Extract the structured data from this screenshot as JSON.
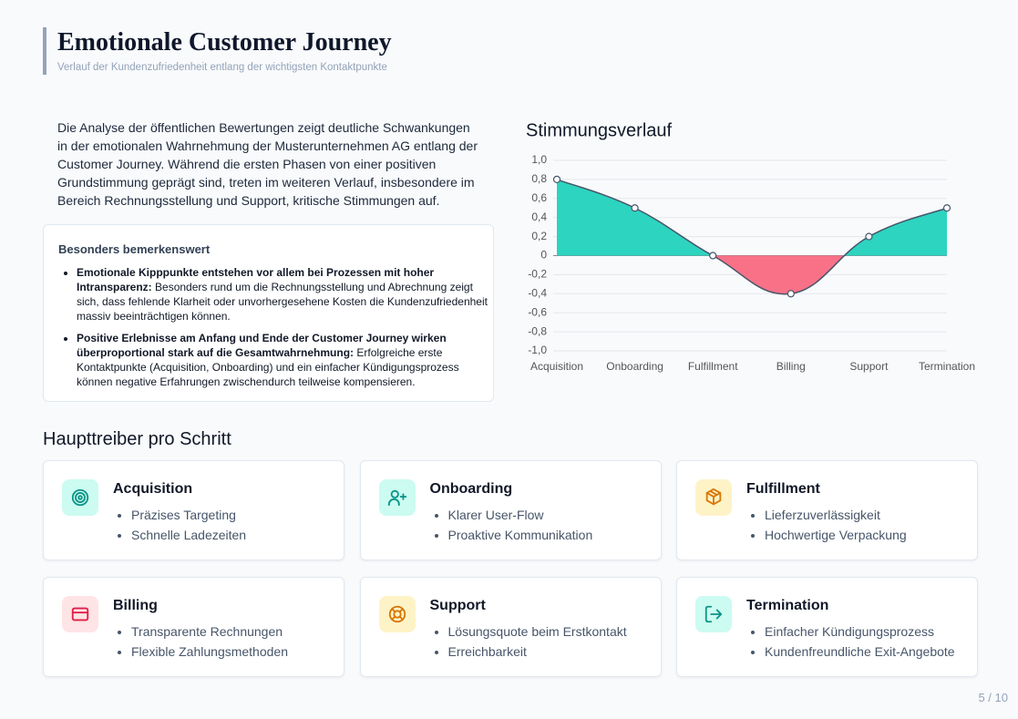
{
  "header": {
    "title": "Emotionale Customer Journey",
    "subtitle": "Verlauf der Kundenzufriedenheit entlang der wichtigsten Kontaktpunkte"
  },
  "intro": "Die Analyse der öffentlichen Bewertungen zeigt deutliche Schwankungen in der emotionalen Wahrnehmung der Musterunternehmen AG entlang der Customer Journey. Während die ersten Phasen von einer positiven Grundstimmung geprägt sind, treten im weiteren Verlauf, insbesondere im Bereich Rechnungsstellung und Support, kritische Stimmungen auf.",
  "highlight": {
    "title": "Besonders bemerkenswert",
    "items": [
      {
        "lead": "Emotionale Kipppunkte entstehen vor allem bei Prozessen mit hoher Intransparenz:",
        "text": "Besonders rund um die Rechnungsstellung und Abrechnung zeigt sich, dass fehlende Klarheit oder unvorhergesehene Kosten die Kundenzufriedenheit massiv beeinträchtigen können."
      },
      {
        "lead": "Positive Erlebnisse am Anfang und Ende der Customer Journey wirken überproportional stark auf die Gesamtwahrnehmung:",
        "text": "Erfolgreiche erste Kontaktpunkte (Acquisition, Onboarding) und ein einfacher Kündigungsprozess können negative Erfahrungen zwischendurch teilweise kompensieren."
      }
    ]
  },
  "chart_data": {
    "type": "line",
    "title": "Stimmungsverlauf",
    "categories": [
      "Acquisition",
      "Onboarding",
      "Fulfillment",
      "Billing",
      "Support",
      "Termination"
    ],
    "values": [
      0.8,
      0.5,
      0,
      -0.4,
      0.2,
      0.5
    ],
    "line_color": "#475569",
    "positive_color": "#2dd4bf",
    "negative_color": "#f87187",
    "ylim": [
      -1,
      1
    ],
    "yticks": [
      {
        "value": -1,
        "label": "-1,0"
      },
      {
        "value": -0.8,
        "label": "-0,8"
      },
      {
        "value": -0.6,
        "label": "-0,6"
      },
      {
        "value": -0.4,
        "label": "-0,4"
      },
      {
        "value": -0.2,
        "label": "-0,2"
      },
      0,
      {
        "value": 0.2,
        "label": "0,2"
      },
      {
        "value": 0.4,
        "label": "0,4"
      },
      {
        "value": 0.6,
        "label": "0,6"
      },
      {
        "value": 0.8,
        "label": "0,8"
      },
      {
        "value": 1,
        "label": "1,0"
      }
    ],
    "grid": true
  },
  "drivers": {
    "title": "Haupttreiber pro Schritt",
    "cards": [
      {
        "title": "Acquisition",
        "points": [
          "Präzises Targeting",
          "Schnelle Ladezeiten"
        ]
      },
      {
        "title": "Onboarding",
        "points": [
          "Klarer User-Flow",
          "Proaktive Kommunikation"
        ]
      },
      {
        "title": "Fulfillment",
        "points": [
          "Lieferzuverlässigkeit",
          "Hochwertige Verpackung"
        ]
      },
      {
        "title": "Billing",
        "points": [
          "Transparente Rechnungen",
          "Flexible Zahlungsmethoden"
        ]
      },
      {
        "title": "Support",
        "points": [
          "Lösungsquote beim Erstkontakt",
          "Erreichbarkeit"
        ]
      },
      {
        "title": "Termination",
        "points": [
          "Einfacher Kündigungsprozess",
          "Kundenfreundliche Exit-Angebote"
        ]
      }
    ]
  },
  "page": "5 / 10"
}
